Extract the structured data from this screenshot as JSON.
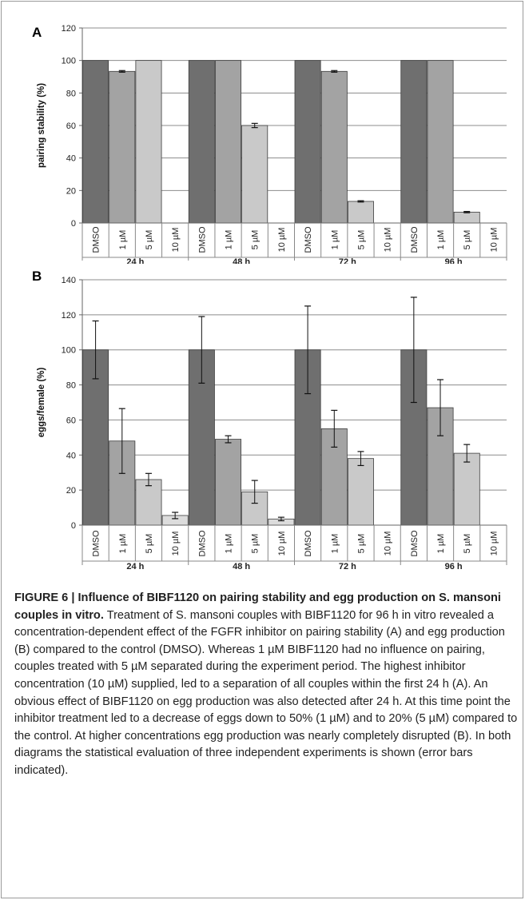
{
  "figure": {
    "chart_data": [
      {
        "panel": "A",
        "type": "bar",
        "ylabel": "pairing stability (%)",
        "ylim": [
          0,
          120
        ],
        "yticks": [
          0,
          20,
          40,
          60,
          80,
          100,
          120
        ],
        "grid": true,
        "groups": [
          "24 h",
          "48 h",
          "72 h",
          "96 h"
        ],
        "categories": [
          "DMSO",
          "1 µM",
          "5 µM",
          "10 µM"
        ],
        "colors": [
          "#6f6f6f",
          "#a3a3a3",
          "#c9c9c9",
          "#dcdcdc"
        ],
        "series": [
          {
            "values": [
              100,
              93.3,
              100,
              0
            ],
            "errors": [
              0,
              0.5,
              0,
              0
            ]
          },
          {
            "values": [
              100,
              100,
              60,
              0
            ],
            "errors": [
              0,
              0,
              1.3,
              0
            ]
          },
          {
            "values": [
              100,
              93.3,
              13.3,
              0
            ],
            "errors": [
              0,
              0.5,
              0.4,
              0
            ]
          },
          {
            "values": [
              100,
              100,
              6.7,
              0
            ],
            "errors": [
              0,
              0,
              0.4,
              0
            ]
          }
        ]
      },
      {
        "panel": "B",
        "type": "bar",
        "ylabel": "eggs/female (%)",
        "ylim": [
          0,
          140
        ],
        "yticks": [
          0,
          20,
          40,
          60,
          80,
          100,
          120,
          140
        ],
        "grid": true,
        "groups": [
          "24 h",
          "48 h",
          "72 h",
          "96 h"
        ],
        "categories": [
          "DMSO",
          "1 µM",
          "5 µM",
          "10 µM"
        ],
        "colors": [
          "#6f6f6f",
          "#a3a3a3",
          "#c9c9c9",
          "#dcdcdc"
        ],
        "series": [
          {
            "values": [
              100,
              48,
              26,
              5.5
            ],
            "errors": [
              16.5,
              18.5,
              3.5,
              1.8
            ]
          },
          {
            "values": [
              100,
              49,
              19,
              3.5
            ],
            "errors": [
              19,
              2,
              6.5,
              1
            ]
          },
          {
            "values": [
              100,
              55,
              38,
              0
            ],
            "errors": [
              25,
              10.5,
              4,
              0
            ]
          },
          {
            "values": [
              100,
              67,
              41,
              0
            ],
            "errors": [
              30,
              16,
              5,
              0
            ]
          }
        ]
      }
    ],
    "caption": {
      "title": "FIGURE 6 | Influence of BIBF1120 on pairing stability and egg production on S. mansoni couples in vitro.",
      "text": "Treatment of S. mansoni couples with BIBF1120 for 96 h in vitro revealed a concentration-dependent effect of the FGFR inhibitor on pairing stability (A) and egg production (B) compared to the control (DMSO). Whereas 1 µM BIBF1120 had no influence on pairing, couples treated with 5 µM separated during the experiment period. The highest inhibitor concentration (10 µM) supplied, led to a separation of all couples within the first 24 h (A). An obvious effect of BIBF1120 on egg production was also detected after 24 h. At this time point the inhibitor treatment led to a decrease of eggs down to 50% (1 µM) and to 20% (5 µM) compared to the control. At higher concentrations egg production was nearly completely disrupted (B). In both diagrams the statistical evaluation of three independent experiments is shown (error bars indicated)."
    }
  }
}
